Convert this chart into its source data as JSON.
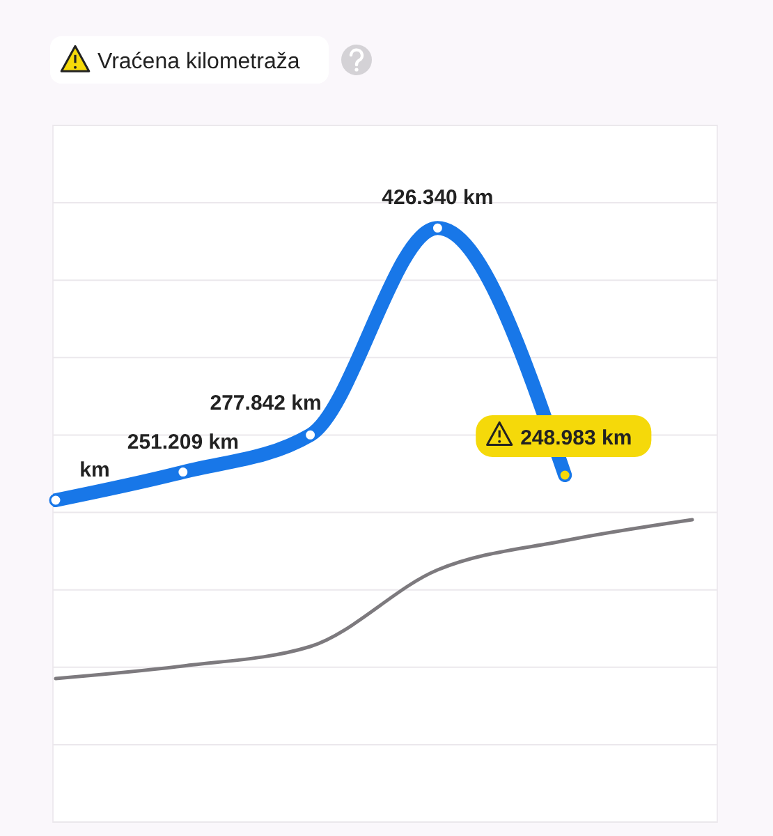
{
  "chart_data": {
    "type": "line",
    "title": "Vraćena kilometraža",
    "categories": [
      null,
      null,
      null,
      null,
      null,
      null
    ],
    "ylim": [
      0,
      500000
    ],
    "yticks": [
      {
        "value": 0,
        "label": null
      },
      {
        "value": 55556,
        "label": null
      },
      {
        "value": 111111,
        "label": null
      },
      {
        "value": 166667,
        "label": null
      },
      {
        "value": 222222,
        "label": null
      },
      {
        "value": 277778,
        "label": null
      },
      {
        "value": 333333,
        "label": null
      },
      {
        "value": 388889,
        "label": null
      },
      {
        "value": 444444,
        "label": null
      },
      {
        "value": 500000,
        "label": null
      }
    ],
    "grid": "y",
    "tick_labels": false,
    "marker": "circle",
    "series": [
      {
        "color": "#1877e8",
        "values": [
          231000,
          251209,
          277842,
          426340,
          248983,
          null
        ],
        "colors": [
          "#ffffff",
          "#ffffff",
          "#ffffff",
          "#ffffff",
          "#f5d90a",
          null
        ],
        "value_labels": [
          "km",
          "251.209 km",
          "277.842 km",
          "426.340 km",
          "248.983 km",
          null
        ]
      },
      {
        "color": "#7d7a7e",
        "marker": "none",
        "values": [
          103000,
          112000,
          126000,
          181000,
          202000,
          217000
        ]
      }
    ]
  }
}
